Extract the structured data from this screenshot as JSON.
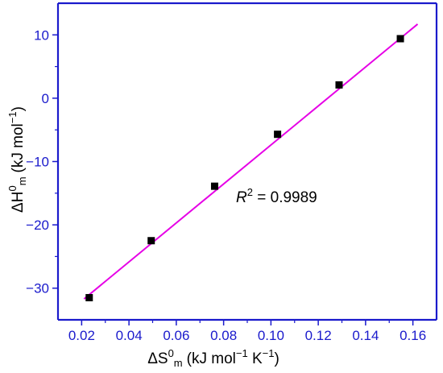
{
  "chart_data": {
    "type": "scatter",
    "x_label": {
      "main": "ΔS",
      "sup": "0",
      "sub": "m",
      "units": "(kJ mol",
      "units_sup1": "−1",
      "units_mid": " K",
      "units_sup2": "−1",
      "units_end": ")"
    },
    "y_label": {
      "main": "ΔH",
      "sup": "0",
      "sub": "m",
      "units": "(kJ mol",
      "units_sup": "−1",
      "units_end": ")"
    },
    "xlim": [
      0.01,
      0.17
    ],
    "ylim": [
      -35,
      15
    ],
    "x_ticks": [
      0.02,
      0.04,
      0.06,
      0.08,
      0.1,
      0.12,
      0.14,
      0.16
    ],
    "x_tick_labels": [
      "0.02",
      "0.04",
      "0.06",
      "0.08",
      "0.10",
      "0.12",
      "0.14",
      "0.16"
    ],
    "y_ticks": [
      -30,
      -20,
      -10,
      0,
      10
    ],
    "y_tick_labels": [
      "−30",
      "−20",
      "−10",
      "0",
      "10"
    ],
    "points": [
      {
        "x": 0.0232,
        "y": -31.5
      },
      {
        "x": 0.0494,
        "y": -22.5
      },
      {
        "x": 0.0762,
        "y": -13.9
      },
      {
        "x": 0.1028,
        "y": -5.7
      },
      {
        "x": 0.1288,
        "y": 2.1
      },
      {
        "x": 0.1547,
        "y": 9.4
      }
    ],
    "fit_line": {
      "x": [
        0.021,
        0.162
      ],
      "y": [
        -31.7,
        11.7
      ],
      "color": "#e600e6"
    },
    "annotation": {
      "label": "R",
      "sup": "2",
      "text": " = 0.9989",
      "x": 0.093,
      "y": -15.5
    },
    "colors": {
      "axes": "#1a1acc",
      "tick_labels": "#1a1acc",
      "points": "#000000",
      "fit": "#e600e6"
    },
    "grid": false,
    "legend": "none"
  }
}
